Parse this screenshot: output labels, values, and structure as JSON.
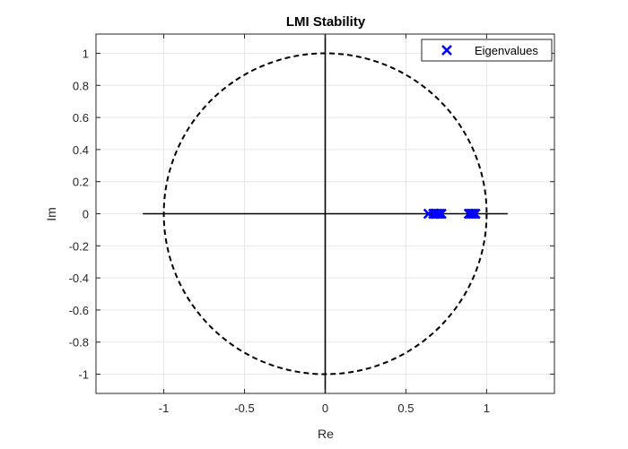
{
  "chart_data": {
    "type": "scatter",
    "title": "LMI Stability",
    "xlabel": "Re",
    "ylabel": "Im",
    "xlim": [
      -1.42,
      1.42
    ],
    "ylim": [
      -1.12,
      1.12
    ],
    "xticks": [
      -1,
      -0.5,
      0,
      0.5,
      1
    ],
    "xtick_labels": [
      "-1",
      "-0.5",
      "0",
      "0.5",
      "1"
    ],
    "yticks": [
      1,
      0.8,
      0.6,
      0.4,
      0.2,
      0,
      -0.2,
      -0.4,
      -0.6,
      -0.8,
      -1
    ],
    "ytick_labels": [
      "1",
      "0.8",
      "0.6",
      "0.4",
      "0.2",
      "0",
      "-0.2",
      "-0.4",
      "-0.6",
      "-0.8",
      "-1"
    ],
    "grid": true,
    "legend_position": "top-right",
    "reference": {
      "unit_circle": true,
      "real_axis": [
        -1.13,
        1.13
      ],
      "imag_axis": [
        -1.12,
        1.12
      ]
    },
    "series": [
      {
        "name": "Eigenvalues",
        "marker": "x",
        "color": "#0000ff",
        "x": [
          0.64,
          0.67,
          0.68,
          0.69,
          0.7,
          0.71,
          0.72,
          0.89,
          0.9,
          0.91,
          0.92,
          0.93
        ],
        "y": [
          0,
          0,
          0,
          0,
          0,
          0,
          0,
          0,
          0,
          0,
          0,
          0
        ]
      }
    ]
  }
}
